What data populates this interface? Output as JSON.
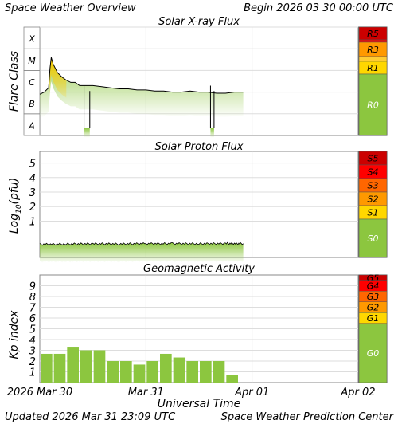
{
  "header": {
    "title": "Space Weather Overview",
    "begin": "Begin 2026 03 30 00:00 UTC"
  },
  "footer": {
    "updated": "Updated 2026 Mar 31 23:09 UTC",
    "center": "Space Weather Prediction Center",
    "xlabel": "Universal Time"
  },
  "colors": {
    "green": "#8cc63f",
    "yellow": "#ffd700",
    "orange": "#ff9900",
    "darkorange": "#ff6600",
    "red": "#ff0000",
    "darkred": "#cc0000",
    "grid": "#dddddd",
    "frame": "#888888"
  },
  "chart_data": [
    {
      "type": "line",
      "title": "Solar X-ray Flux",
      "ylabel": "Flare Class",
      "y_classes": [
        "A",
        "B",
        "C",
        "M",
        "X"
      ],
      "ylim": [
        0,
        5
      ],
      "x_unit": "hours since 2026-03-30 00:00 UTC",
      "x_ticks": [
        "2026 Mar 30",
        "Mar 31",
        "Apr 01",
        "Apr 02"
      ],
      "series": [
        {
          "values": [
            [
              0,
              1.9
            ],
            [
              1,
              2.0
            ],
            [
              2,
              2.2
            ],
            [
              2.3,
              3.1
            ],
            [
              2.6,
              3.6
            ],
            [
              3,
              3.3
            ],
            [
              4,
              2.9
            ],
            [
              5,
              2.7
            ],
            [
              6,
              2.55
            ],
            [
              7,
              2.45
            ],
            [
              8,
              2.45
            ],
            [
              9,
              2.3
            ],
            [
              10,
              2.3
            ],
            [
              11,
              2.3
            ],
            [
              12,
              2.3
            ],
            [
              14,
              2.25
            ],
            [
              16,
              2.2
            ],
            [
              18,
              2.15
            ],
            [
              20,
              2.15
            ],
            [
              22,
              2.1
            ],
            [
              24,
              2.1
            ],
            [
              26,
              2.05
            ],
            [
              28,
              2.05
            ],
            [
              30,
              2.0
            ],
            [
              32,
              2.0
            ],
            [
              34,
              2.05
            ],
            [
              36,
              2.0
            ],
            [
              38,
              2.0
            ],
            [
              40,
              1.95
            ],
            [
              42,
              1.95
            ],
            [
              44,
              2.0
            ],
            [
              46,
              2.0
            ]
          ],
          "dropouts": [
            [
              10,
              11.3
            ],
            [
              38.6,
              39.4
            ]
          ]
        }
      ],
      "scale_labels": [
        "R5",
        "R3",
        "R1",
        "R0"
      ]
    },
    {
      "type": "line",
      "title": "Solar Proton Flux",
      "ylabel": "Log10(pfu)",
      "ylabel_main": "Log",
      "ylabel_sub": "10",
      "ylabel_tail": "(pfu)",
      "y_ticks": [
        "1",
        "2",
        "3",
        "4",
        "5"
      ],
      "ylim": [
        -1.5,
        5.8
      ],
      "x_unit": "hours since 2026-03-30 00:00 UTC",
      "series": [
        {
          "values": [
            [
              0,
              -0.6
            ],
            [
              6,
              -0.58
            ],
            [
              12,
              -0.56
            ],
            [
              18,
              -0.57
            ],
            [
              24,
              -0.55
            ],
            [
              30,
              -0.55
            ],
            [
              36,
              -0.56
            ],
            [
              42,
              -0.54
            ],
            [
              46,
              -0.55
            ]
          ]
        }
      ],
      "scale_labels": [
        "S5",
        "S4",
        "S3",
        "S2",
        "S1",
        "S0"
      ]
    },
    {
      "type": "bar",
      "title": "Geomagnetic Activity",
      "ylabel": "Kp index",
      "y_ticks": [
        "1",
        "2",
        "3",
        "4",
        "5",
        "6",
        "7",
        "8",
        "9"
      ],
      "ylim": [
        0,
        10
      ],
      "bar_width_hours": 3,
      "categories": [
        "Mar 30 00",
        "Mar 30 03",
        "Mar 30 06",
        "Mar 30 09",
        "Mar 30 12",
        "Mar 30 15",
        "Mar 30 18",
        "Mar 30 21",
        "Mar 31 00",
        "Mar 31 03",
        "Mar 31 06",
        "Mar 31 09",
        "Mar 31 12",
        "Mar 31 15",
        "Mar 31 18",
        "Mar 31 21"
      ],
      "values": [
        2.67,
        2.67,
        3.33,
        3.0,
        3.0,
        2.0,
        2.0,
        1.67,
        2.0,
        2.67,
        2.33,
        2.0,
        2.0,
        2.0,
        0.67,
        0
      ],
      "scale_labels": [
        "G5",
        "G4",
        "G3",
        "G2",
        "G1",
        "G0"
      ]
    }
  ]
}
